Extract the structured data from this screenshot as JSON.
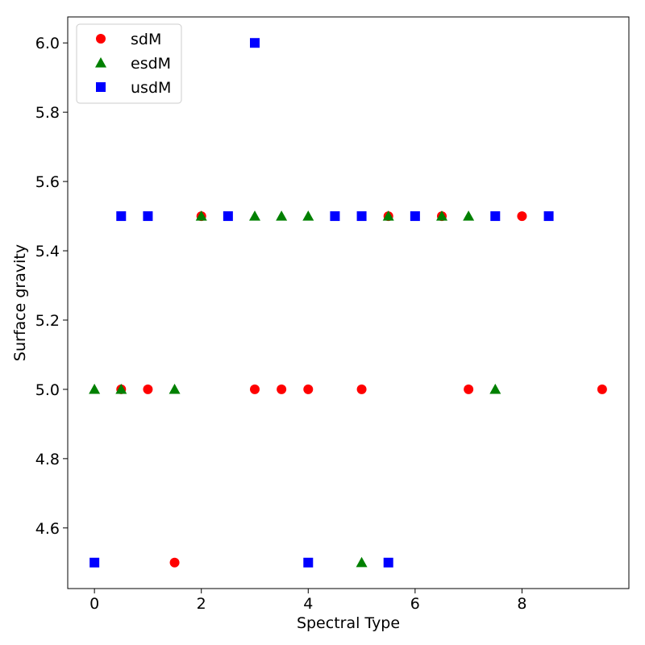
{
  "chart_data": {
    "type": "scatter",
    "xlabel": "Spectral Type",
    "ylabel": "Surface gravity",
    "xlim": [
      -0.5,
      10
    ],
    "ylim": [
      4.425,
      6.075
    ],
    "xticks": [
      0,
      2,
      4,
      6,
      8
    ],
    "yticks": [
      4.6,
      4.8,
      5.0,
      5.2,
      5.4,
      5.6,
      5.8,
      6.0
    ],
    "xtick_labels": [
      "0",
      "2",
      "4",
      "6",
      "8"
    ],
    "ytick_labels": [
      "4.6",
      "4.8",
      "5.0",
      "5.2",
      "5.4",
      "5.6",
      "5.8",
      "6.0"
    ],
    "grid": false,
    "legend_position": "top-left",
    "series": [
      {
        "name": "sdM",
        "marker": "circle",
        "color": "#ff0000",
        "points": [
          {
            "x": 0.5,
            "y": 5.0
          },
          {
            "x": 1.0,
            "y": 5.0
          },
          {
            "x": 1.5,
            "y": 4.5
          },
          {
            "x": 2.0,
            "y": 5.5
          },
          {
            "x": 3.0,
            "y": 5.0
          },
          {
            "x": 3.5,
            "y": 5.0
          },
          {
            "x": 4.0,
            "y": 5.0
          },
          {
            "x": 5.0,
            "y": 5.0
          },
          {
            "x": 5.5,
            "y": 5.5
          },
          {
            "x": 6.5,
            "y": 5.5
          },
          {
            "x": 7.0,
            "y": 5.0
          },
          {
            "x": 8.0,
            "y": 5.5
          },
          {
            "x": 9.5,
            "y": 5.0
          }
        ]
      },
      {
        "name": "esdM",
        "marker": "triangle",
        "color": "#008000",
        "points": [
          {
            "x": 0.0,
            "y": 5.0
          },
          {
            "x": 0.5,
            "y": 5.0
          },
          {
            "x": 1.5,
            "y": 5.0
          },
          {
            "x": 2.0,
            "y": 5.5
          },
          {
            "x": 3.0,
            "y": 5.5
          },
          {
            "x": 3.5,
            "y": 5.5
          },
          {
            "x": 4.0,
            "y": 5.5
          },
          {
            "x": 5.0,
            "y": 4.5
          },
          {
            "x": 5.5,
            "y": 5.5
          },
          {
            "x": 6.5,
            "y": 5.5
          },
          {
            "x": 7.0,
            "y": 5.5
          },
          {
            "x": 7.5,
            "y": 5.0
          }
        ]
      },
      {
        "name": "usdM",
        "marker": "square",
        "color": "#0000ff",
        "points": [
          {
            "x": 0.0,
            "y": 4.5
          },
          {
            "x": 0.5,
            "y": 5.5
          },
          {
            "x": 1.0,
            "y": 5.5
          },
          {
            "x": 2.5,
            "y": 5.5
          },
          {
            "x": 3.0,
            "y": 6.0
          },
          {
            "x": 4.0,
            "y": 4.5
          },
          {
            "x": 4.5,
            "y": 5.5
          },
          {
            "x": 5.0,
            "y": 5.5
          },
          {
            "x": 5.5,
            "y": 4.5
          },
          {
            "x": 6.0,
            "y": 5.5
          },
          {
            "x": 7.5,
            "y": 5.5
          },
          {
            "x": 8.5,
            "y": 5.5
          }
        ]
      }
    ]
  }
}
